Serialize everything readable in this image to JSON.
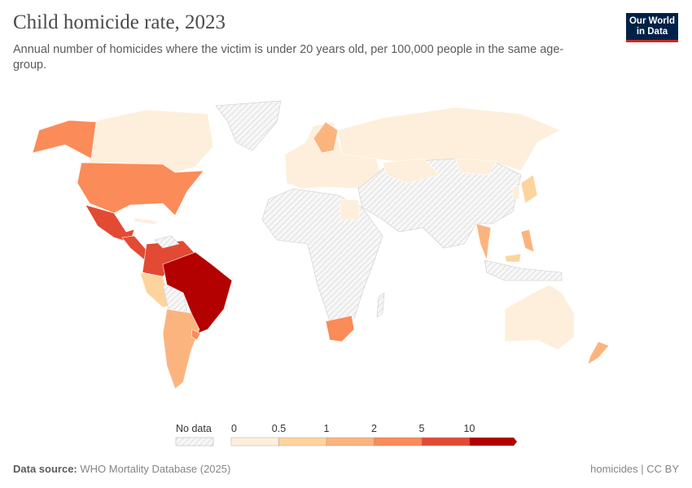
{
  "header": {
    "title": "Child homicide rate, 2023",
    "subtitle": "Annual number of homicides where the victim is under 20 years old, per 100,000 people in the same age-group.",
    "logo": "Our World in Data"
  },
  "legend": {
    "no_data_label": "No data",
    "ticks": [
      "0",
      "0.5",
      "1",
      "2",
      "5",
      "10"
    ],
    "colors": [
      "#fdefdb",
      "#fdd49e",
      "#fcb47f",
      "#fb8b58",
      "#e34a33",
      "#b30000"
    ],
    "no_data_color": "#eeeeee"
  },
  "countries": {
    "Greenland": "no data",
    "Canada": "0-0.5",
    "United States": "2-5",
    "Mexico": "5-10",
    "Central America": "5-10",
    "Colombia": "5-10",
    "Venezuela": "5-10",
    "Brazil": "10+",
    "Peru": "0.5-1",
    "Argentina": "1-2",
    "Chile": "1-2",
    "Europe": "0-0.5",
    "Russia": "0-0.5",
    "Africa": "no data",
    "South Africa": "2-5",
    "Middle East": "no data",
    "China": "no data",
    "India": "no data",
    "Japan": "0-0.5",
    "Thailand": "1-2",
    "Philippines": "1-2",
    "Australia": "0-0.5",
    "New Zealand": "1-2",
    "Egypt": "0-0.5"
  },
  "footer": {
    "source_label": "Data source:",
    "source": "WHO Mortality Database (2025)",
    "license": "homicides | CC BY"
  }
}
